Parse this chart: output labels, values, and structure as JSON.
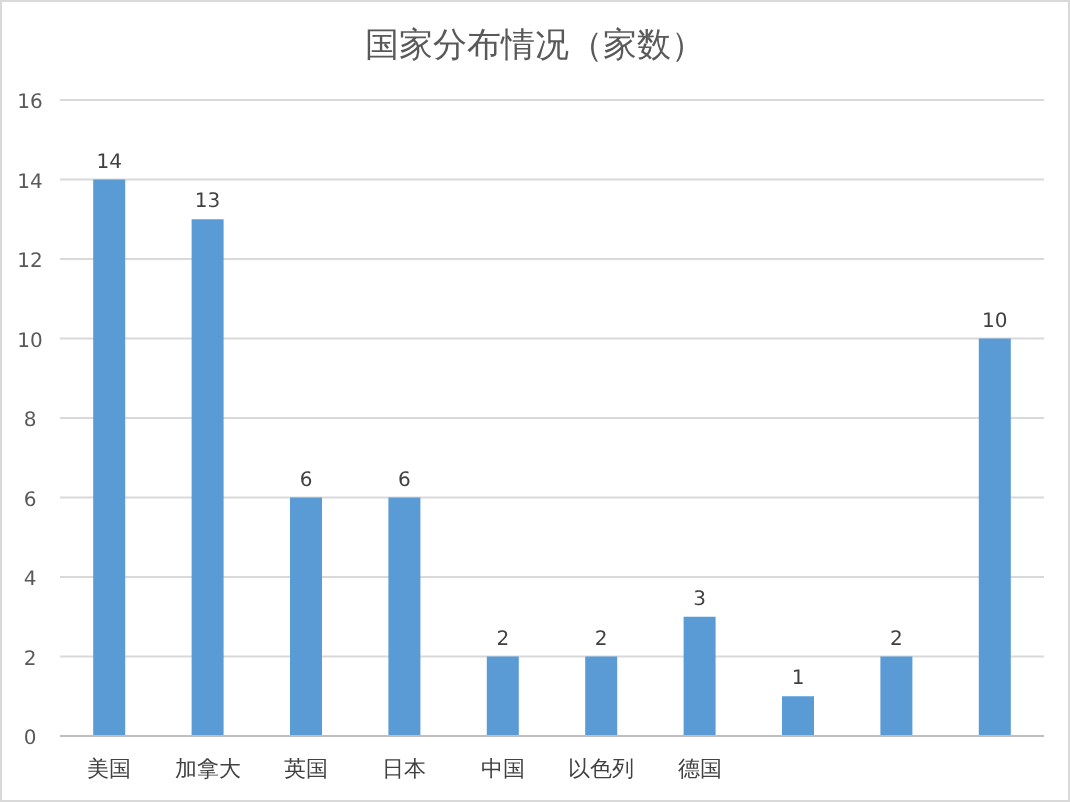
{
  "chart_data": {
    "type": "bar",
    "title": "国家分布情况（家数）",
    "categories": [
      "美国",
      "加拿大",
      "英国",
      "日本",
      "中国",
      "以色列",
      "德国",
      null,
      null,
      null
    ],
    "values": [
      14,
      13,
      6,
      6,
      2,
      2,
      3,
      1,
      2,
      10
    ],
    "color": "#5b9bd5",
    "ylim": [
      0,
      16
    ],
    "yticks": [
      0,
      2,
      4,
      6,
      8,
      10,
      12,
      14,
      16
    ],
    "grid": "y",
    "data_labels": true
  }
}
